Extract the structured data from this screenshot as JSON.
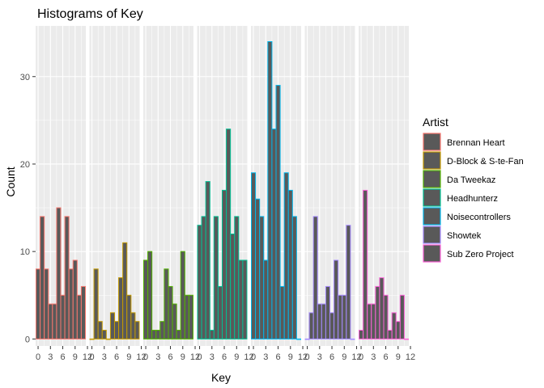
{
  "chart_data": {
    "type": "bar",
    "title": "Histograms of Key",
    "xlabel": "Key",
    "ylabel": "Count",
    "ylim": [
      -0.8,
      35.8
    ],
    "xlim": [
      -0.6,
      11.6
    ],
    "x_ticks": [
      0,
      3,
      6,
      9,
      12
    ],
    "x_tick_labels": [
      "0",
      "3",
      "6",
      "9",
      "12"
    ],
    "y_ticks": [
      0,
      10,
      20,
      30
    ],
    "y_tick_labels": [
      "0",
      "10",
      "20",
      "30"
    ],
    "grid": true,
    "legend_position": "right",
    "legend_title": "Artist",
    "bar_fill": "#595959",
    "panel_background": "#ebebeb",
    "categories": [
      0,
      1,
      2,
      3,
      4,
      5,
      6,
      7,
      8,
      9,
      10,
      11
    ],
    "series": [
      {
        "name": "Brennan Heart",
        "color": "#F8766D",
        "values": [
          8,
          14,
          8,
          4,
          4,
          15,
          5,
          14,
          8,
          9,
          5,
          6
        ]
      },
      {
        "name": "D-Block & S-te-Fan",
        "color": "#C49A00",
        "values": [
          0,
          8,
          2,
          1,
          0,
          3,
          2,
          7,
          11,
          5,
          3,
          2
        ]
      },
      {
        "name": "Da Tweekaz",
        "color": "#53B400",
        "values": [
          9,
          10,
          1,
          1,
          2,
          8,
          6,
          4,
          1,
          10,
          5,
          5
        ]
      },
      {
        "name": "Headhunterz",
        "color": "#00C094",
        "values": [
          13,
          14,
          18,
          1,
          14,
          6,
          17,
          24,
          12,
          14,
          9,
          9
        ]
      },
      {
        "name": "Noisecontrollers",
        "color": "#00B6EB",
        "values": [
          19,
          16,
          14,
          9,
          34,
          24,
          29,
          6,
          19,
          17,
          14,
          0
        ]
      },
      {
        "name": "Showtek",
        "color": "#A58AFF",
        "values": [
          0,
          3,
          14,
          4,
          4,
          6,
          3,
          9,
          5,
          5,
          13,
          0
        ]
      },
      {
        "name": "Sub Zero Project",
        "color": "#FB61D7",
        "values": [
          1,
          17,
          4,
          4,
          6,
          7,
          5,
          1,
          3,
          2,
          5,
          0
        ]
      }
    ]
  }
}
